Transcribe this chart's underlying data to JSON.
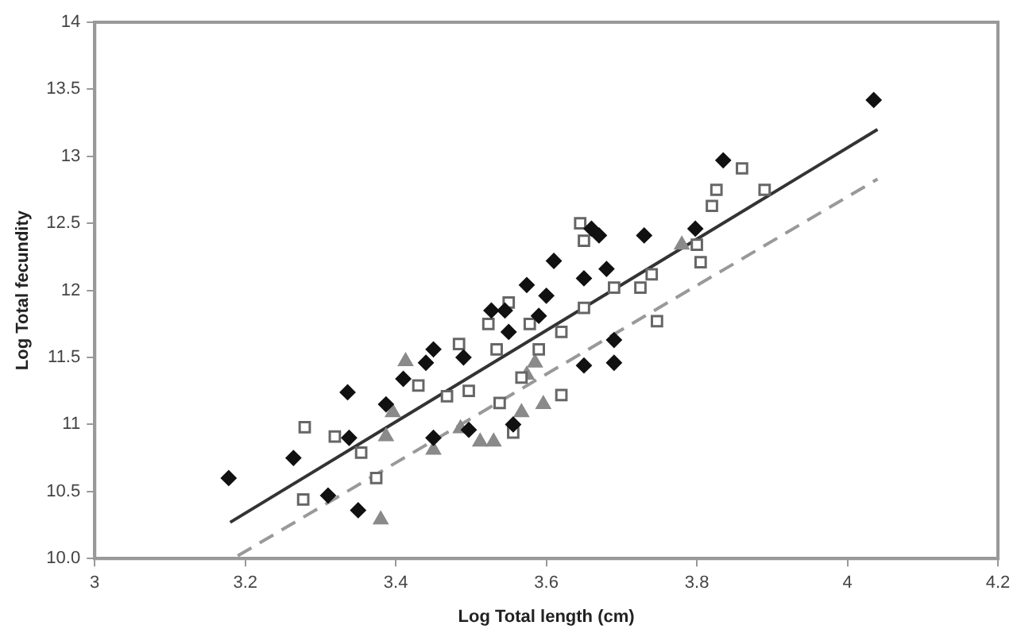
{
  "chart_data": {
    "type": "scatter",
    "xlabel": "Log Total length (cm)",
    "ylabel": "Log Total fecundity",
    "xlim": [
      3,
      4.2
    ],
    "xticks": [
      3,
      3.2,
      3.4,
      3.6,
      3.8,
      4,
      4.2
    ],
    "ylim": [
      10,
      14
    ],
    "yticks": [
      {
        "value": 10,
        "label": "10.0"
      },
      10.5,
      11,
      11.5,
      12,
      12.5,
      13,
      13.5,
      14
    ],
    "grid": false,
    "legend": false,
    "series": [
      {
        "type": "scatter",
        "marker": "diamond",
        "color": "#111111",
        "x": [
          3.178,
          3.264,
          3.31,
          3.336,
          3.338,
          3.35,
          3.387,
          3.41,
          3.44,
          3.45,
          3.45,
          3.49,
          3.497,
          3.527,
          3.545,
          3.55,
          3.556,
          3.574,
          3.59,
          3.6,
          3.61,
          3.65,
          3.65,
          3.66,
          3.67,
          3.68,
          3.69,
          3.69,
          3.73,
          3.798,
          3.835,
          4.035
        ],
        "values": [
          10.6,
          10.75,
          10.47,
          11.24,
          10.9,
          10.36,
          11.15,
          11.34,
          11.46,
          11.56,
          10.9,
          11.5,
          10.96,
          11.85,
          11.85,
          11.69,
          11.0,
          12.04,
          11.81,
          11.96,
          12.22,
          12.09,
          11.44,
          12.46,
          12.41,
          12.16,
          11.63,
          11.46,
          12.41,
          12.46,
          12.97,
          13.42
        ]
      },
      {
        "type": "scatter",
        "marker": "square",
        "color": "#666666",
        "x": [
          3.277,
          3.279,
          3.319,
          3.354,
          3.374,
          3.43,
          3.468,
          3.484,
          3.497,
          3.523,
          3.534,
          3.538,
          3.55,
          3.556,
          3.567,
          3.578,
          3.59,
          3.62,
          3.62,
          3.65,
          3.65,
          3.645,
          3.69,
          3.725,
          3.74,
          3.747,
          3.8,
          3.805,
          3.82,
          3.826,
          3.86,
          3.89
        ],
        "values": [
          10.44,
          10.98,
          10.91,
          10.79,
          10.6,
          11.29,
          11.21,
          11.6,
          11.25,
          11.75,
          11.56,
          11.16,
          11.91,
          10.94,
          11.35,
          11.75,
          11.56,
          11.69,
          11.22,
          11.87,
          12.37,
          12.5,
          12.02,
          12.02,
          12.12,
          11.77,
          12.34,
          12.21,
          12.63,
          12.75,
          12.91,
          12.75
        ]
      },
      {
        "type": "scatter",
        "marker": "triangle",
        "color": "#8a8a8a",
        "x": [
          3.38,
          3.387,
          3.396,
          3.413,
          3.45,
          3.486,
          3.512,
          3.53,
          3.567,
          3.574,
          3.585,
          3.596,
          3.78
        ],
        "values": [
          10.29,
          10.91,
          11.09,
          11.47,
          10.81,
          10.97,
          10.87,
          10.87,
          11.09,
          11.37,
          11.46,
          11.15,
          12.34
        ]
      },
      {
        "type": "line",
        "line_style": "solid",
        "color": "#333333",
        "x": [
          3.18,
          4.04
        ],
        "values": [
          10.27,
          13.2
        ]
      },
      {
        "type": "line",
        "line_style": "dashed",
        "color": "#999999",
        "x": [
          3.19,
          4.04
        ],
        "values": [
          10.02,
          12.83
        ]
      }
    ]
  }
}
